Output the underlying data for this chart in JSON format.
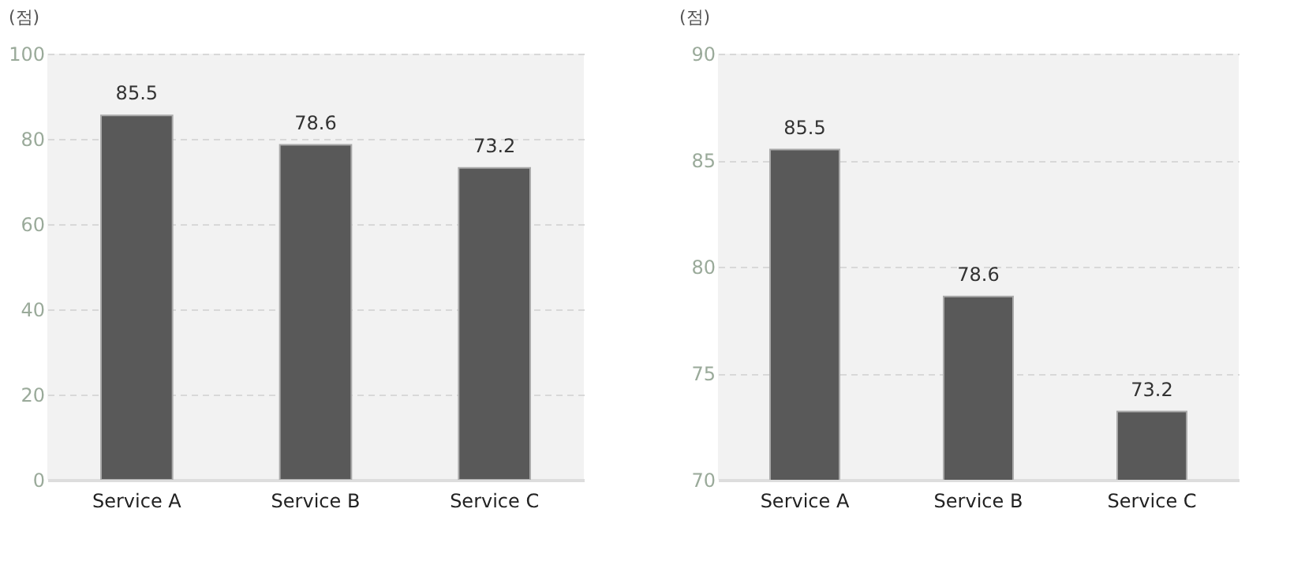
{
  "chart_data": [
    {
      "type": "bar",
      "ylabel": "(점)",
      "categories": [
        "Service A",
        "Service B",
        "Service C"
      ],
      "values": [
        85.5,
        78.6,
        73.2
      ],
      "color": "#595959",
      "ylim": [
        0,
        100
      ],
      "yticks": [
        0,
        20,
        40,
        60,
        80,
        100
      ],
      "grid": "y",
      "data_labels": true
    },
    {
      "type": "bar",
      "ylabel": "(점)",
      "categories": [
        "Service A",
        "Service B",
        "Service C"
      ],
      "values": [
        85.5,
        78.6,
        73.2
      ],
      "color": "#595959",
      "ylim": [
        70,
        90
      ],
      "yticks": [
        70,
        75,
        80,
        85,
        90
      ],
      "grid": "y",
      "data_labels": true
    }
  ]
}
